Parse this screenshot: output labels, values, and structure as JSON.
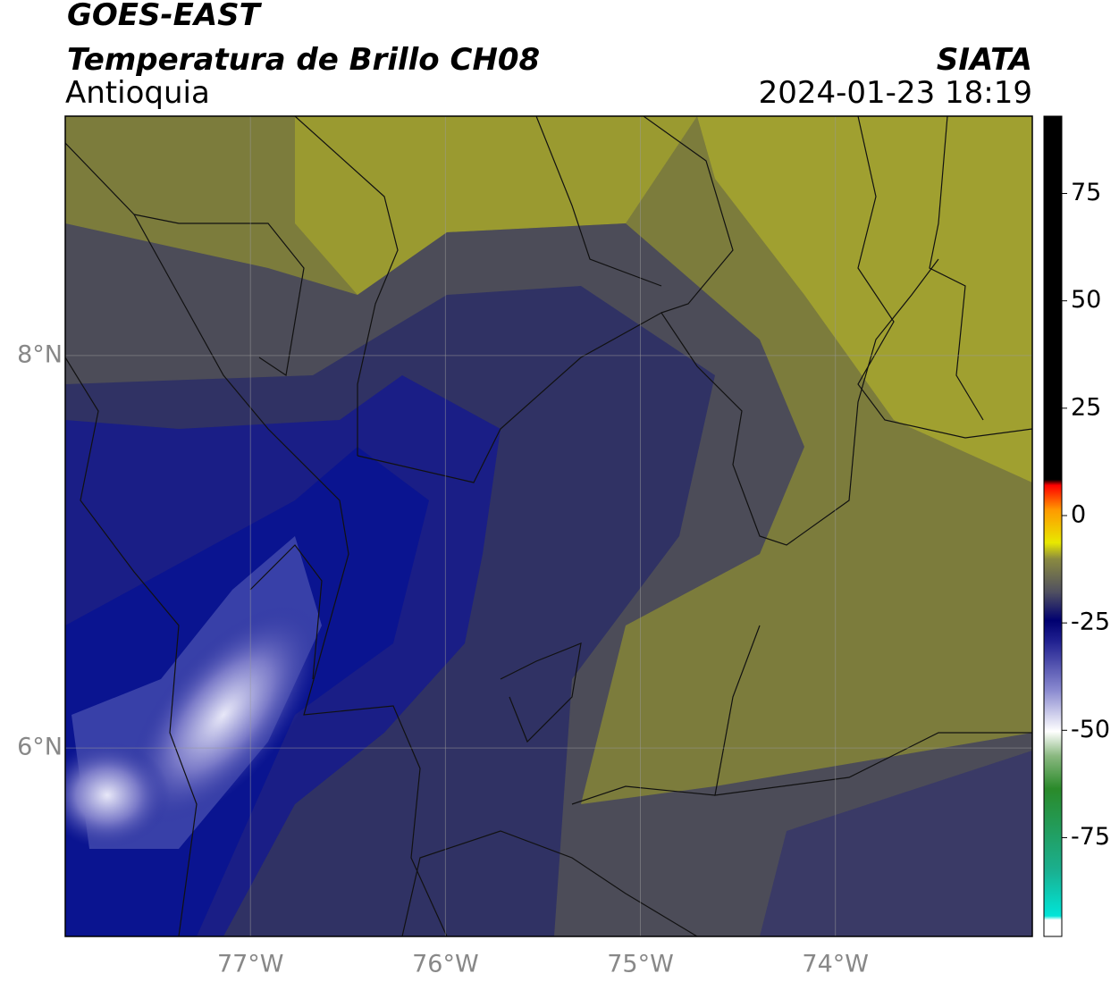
{
  "header": {
    "title": "GOES-EAST",
    "subtitle": "Temperatura de Brillo CH08",
    "region": "Antioquia",
    "source": "SIATA",
    "timestamp": "2024-01-23 18:19"
  },
  "map": {
    "xlim": [
      -77.95,
      -72.99
    ],
    "ylim": [
      5.04,
      9.22
    ],
    "xticks": [
      {
        "value": -77,
        "label": "77°W"
      },
      {
        "value": -76,
        "label": "76°W"
      },
      {
        "value": -75,
        "label": "75°W"
      },
      {
        "value": -74,
        "label": "74°W"
      }
    ],
    "yticks": [
      {
        "value": 8,
        "label": "8°N"
      },
      {
        "value": 6,
        "label": "6°N"
      }
    ],
    "grid": true
  },
  "colorbar": {
    "lim": [
      -98,
      93
    ],
    "ticks": [
      75,
      50,
      25,
      0,
      -25,
      -50,
      -75
    ]
  }
}
